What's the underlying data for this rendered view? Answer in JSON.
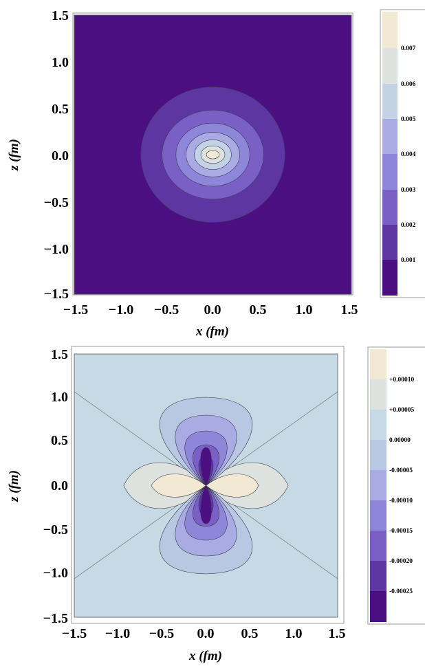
{
  "chart_data": [
    {
      "type": "heatmap",
      "subtype": "contour",
      "xlabel": "x (fm)",
      "ylabel": "z (fm)",
      "xlim": [
        -1.5,
        1.5
      ],
      "ylim": [
        -1.5,
        1.5
      ],
      "xticks": [
        "−1.5",
        "−1.0",
        "−0.5",
        "0.0",
        "0.5",
        "1.0",
        "1.5"
      ],
      "yticks": [
        "1.5",
        "1.0",
        "0.5",
        "0.0",
        "−0.5",
        "−1.0",
        "−1.5"
      ],
      "levels": [
        0.001,
        0.002,
        0.003,
        0.004,
        0.005,
        0.006,
        0.007
      ],
      "colorbar_labels": [
        "0.007",
        "0.006",
        "0.005",
        "0.004",
        "0.003",
        "0.002",
        "0.001"
      ],
      "band_colors": [
        "#4b0f82",
        "#5e36a2",
        "#7a5fc4",
        "#8e86d8",
        "#a9abe2",
        "#c3d2e4",
        "#dde2df",
        "#f1e9d4"
      ],
      "contour_radii": [
        {
          "level": 0.001,
          "rx": 0.78,
          "rz": 0.73
        },
        {
          "level": 0.002,
          "rx": 0.55,
          "rz": 0.48
        },
        {
          "level": 0.003,
          "rx": 0.4,
          "rz": 0.34
        },
        {
          "level": 0.004,
          "rx": 0.29,
          "rz": 0.24
        },
        {
          "level": 0.005,
          "rx": 0.2,
          "rz": 0.16
        },
        {
          "level": 0.006,
          "rx": 0.13,
          "rz": 0.095
        },
        {
          "level": 0.007,
          "rx": 0.07,
          "rz": 0.045
        }
      ]
    },
    {
      "type": "heatmap",
      "subtype": "contour",
      "xlabel": "x (fm)",
      "ylabel": "z (fm)",
      "xlim": [
        -1.5,
        1.5
      ],
      "ylim": [
        -1.5,
        1.5
      ],
      "xticks": [
        "−1.5",
        "−1.0",
        "−0.5",
        "0.0",
        "0.5",
        "1.0",
        "1.5"
      ],
      "yticks": [
        "1.5",
        "1.0",
        "0.5",
        "0.0",
        "−0.5",
        "−1.0",
        "−1.5"
      ],
      "levels": [
        -0.00025,
        -0.0002,
        -0.00015,
        -0.0001,
        -5e-05,
        0.0,
        5e-05,
        0.0001
      ],
      "colorbar_labels": [
        "+0.00010",
        "+0.00005",
        "0.00000",
        "-0.00005",
        "-0.00010",
        "-0.00015",
        "-0.00020",
        "-0.00025"
      ],
      "band_colors": [
        "#4b0f82",
        "#5e36a2",
        "#7a5fc4",
        "#8e86d8",
        "#a9abe2",
        "#b8c7e2",
        "#c6d9e4",
        "#dde2df",
        "#f1e9d4"
      ],
      "pattern": "quadrupole",
      "zero_lines_angle_deg": 35,
      "positive_lobe_extent": 0.58,
      "negative_lobe_extents": [
        1.0,
        0.82,
        0.65,
        0.52
      ]
    }
  ]
}
